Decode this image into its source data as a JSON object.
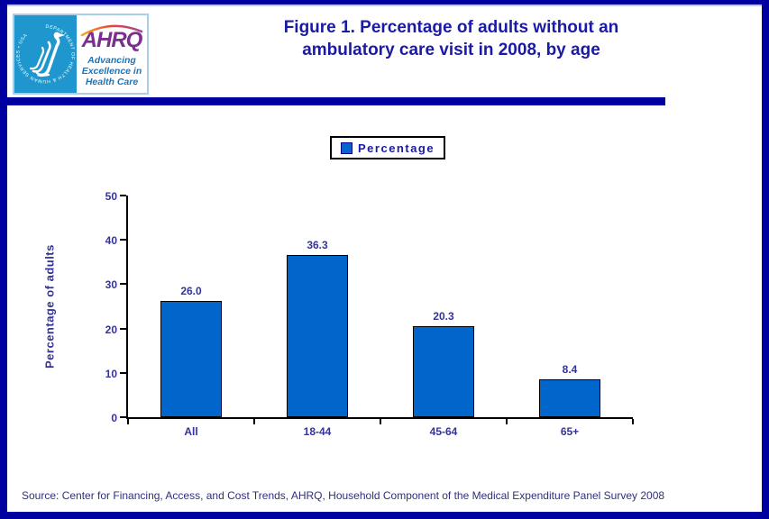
{
  "header": {
    "title_line1": "Figure 1. Percentage of adults without an",
    "title_line2": "ambulatory care visit in 2008, by age"
  },
  "logo": {
    "ahrq_acronym": "AHRQ",
    "tagline_line1": "Advancing",
    "tagline_line2": "Excellence in",
    "tagline_line3": "Health Care",
    "hhs_seal_text": "DEPARTMENT OF HEALTH & HUMAN SERVICES • USA"
  },
  "legend": {
    "label": "Percentage"
  },
  "chart_data": {
    "type": "bar",
    "categories": [
      "All",
      "18-44",
      "45-64",
      "65+"
    ],
    "values": [
      26.0,
      36.3,
      20.3,
      8.4
    ],
    "data_labels": [
      "26.0",
      "36.3",
      "20.3",
      "8.4"
    ],
    "series_name": "Percentage",
    "title": "Figure 1. Percentage of adults without an ambulatory care visit in 2008, by age",
    "xlabel": "",
    "ylabel": "Percentage of adults",
    "ylim": [
      0,
      50
    ],
    "yticks": [
      0,
      10,
      20,
      30,
      40,
      50
    ],
    "grid": false,
    "legend_position": "top",
    "bar_color": "#0066CC"
  },
  "footer": {
    "source": "Source: Center for Financing, Access, and Cost Trends, AHRQ, Household Component of the Medical Expenditure Panel Survey 2008"
  },
  "colors": {
    "frame_navy": "#0000A0",
    "title_blue": "#1A1AA6",
    "chart_text_blue": "#333399",
    "bar_blue": "#0066CC",
    "hhs_panel_blue": "#1F97CE",
    "ahrq_purple": "#7B2E8E",
    "tagline_blue": "#1B75BB",
    "source_blue": "#2F2F7F"
  }
}
